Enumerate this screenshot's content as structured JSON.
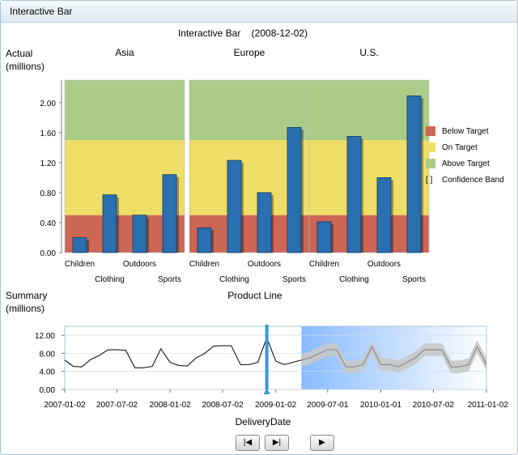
{
  "window": {
    "title": "Interactive Bar"
  },
  "main_chart": {
    "title": "Interactive Bar",
    "date": "(2008-12-02)",
    "ylabel_line1": "Actual",
    "ylabel_line2": "(millions)",
    "panels": [
      "Asia",
      "Europe",
      "U.S."
    ]
  },
  "legend": {
    "items": [
      {
        "label": "Below Target",
        "color": "#cc6655",
        "kind": "swatch"
      },
      {
        "label": "On Target",
        "color": "#eedd66",
        "kind": "swatch"
      },
      {
        "label": "Above Target",
        "color": "#aacc88",
        "kind": "swatch"
      },
      {
        "label": "Confidence Band",
        "color": "#000000",
        "kind": "bracket"
      }
    ],
    "bracket_glyph": "[ ]"
  },
  "summary": {
    "ylabel_line1": "Summary",
    "ylabel_line2": "(millions)",
    "title": "Product Line",
    "xlabel": "DeliveryDate"
  },
  "controls": {
    "first_glyph": "|◀",
    "last_glyph": "▶|",
    "play_glyph": "▶"
  },
  "chart_data": [
    {
      "type": "bar",
      "panels": [
        "Asia",
        "Europe",
        "U.S."
      ],
      "categories": [
        "Children",
        "Clothing",
        "Outdoors",
        "Sports"
      ],
      "series": [
        {
          "name": "Asia",
          "values": [
            0.2,
            0.77,
            0.5,
            1.04
          ]
        },
        {
          "name": "Europe",
          "values": [
            0.33,
            1.23,
            0.8,
            1.67
          ]
        },
        {
          "name": "U.S.",
          "values": [
            0.41,
            1.55,
            1.0,
            2.09
          ]
        }
      ],
      "bands": [
        {
          "label": "Below Target",
          "from": 0,
          "to": 0.5,
          "color": "#cc6655"
        },
        {
          "label": "On Target",
          "from": 0.5,
          "to": 1.5,
          "color": "#eedd66"
        },
        {
          "label": "Above Target",
          "from": 1.5,
          "to": 2.3,
          "color": "#aacc88"
        }
      ],
      "yticks": [
        "0.00",
        "0.40",
        "0.80",
        "1.20",
        "1.60",
        "2.00"
      ],
      "ylim": [
        0,
        2.3
      ],
      "bar_color": "#2a6faf",
      "ylabel": "Actual (millions)"
    },
    {
      "type": "line",
      "title": "Product Line",
      "xlabel": "DeliveryDate",
      "ylabel": "Summary (millions)",
      "xlim": [
        "2007-01-02",
        "2011-01-02"
      ],
      "ylim": [
        0,
        14
      ],
      "yticks": [
        "0.00",
        "4.00",
        "8.00",
        "12.00"
      ],
      "xticks": [
        "2007-01-02",
        "2007-07-02",
        "2008-01-02",
        "2008-07-02",
        "2009-01-02",
        "2009-07-01",
        "2010-01-01",
        "2010-07-02",
        "2011-01-02"
      ],
      "actual": {
        "x": [
          "2007-01-02",
          "2007-02-01",
          "2007-03-02",
          "2007-04-01",
          "2007-05-01",
          "2007-06-01",
          "2007-07-02",
          "2007-08-01",
          "2007-09-02",
          "2007-10-01",
          "2007-11-01",
          "2007-12-01",
          "2008-01-02",
          "2008-02-01",
          "2008-03-02",
          "2008-04-01",
          "2008-05-01",
          "2008-06-01",
          "2008-07-02",
          "2008-08-01",
          "2008-09-02",
          "2008-10-01",
          "2008-11-01",
          "2008-12-02",
          "2009-01-02",
          "2009-02-01",
          "2009-03-02",
          "2009-04-01"
        ],
        "y": [
          6.5,
          5.1,
          5.0,
          6.6,
          7.5,
          8.8,
          8.8,
          8.7,
          4.8,
          4.8,
          5.1,
          9.0,
          6.0,
          5.3,
          5.2,
          7.0,
          8.0,
          9.6,
          9.7,
          9.7,
          5.5,
          5.5,
          6.0,
          11.5,
          6.3,
          5.5,
          6.0,
          6.5
        ]
      },
      "forecast": {
        "x": [
          "2009-04-01",
          "2009-05-01",
          "2009-06-01",
          "2009-07-01",
          "2009-08-01",
          "2009-09-02",
          "2009-10-01",
          "2009-11-01",
          "2009-12-01",
          "2010-01-01",
          "2010-02-01",
          "2010-03-02",
          "2010-04-01",
          "2010-05-01",
          "2010-06-01",
          "2010-07-02",
          "2010-08-01",
          "2010-09-02",
          "2010-10-01",
          "2010-11-01",
          "2010-12-01",
          "2011-01-02"
        ],
        "y": [
          6.5,
          7.0,
          8.0,
          8.8,
          8.8,
          5.0,
          5.0,
          5.5,
          9.5,
          5.5,
          5.5,
          5.0,
          6.0,
          7.0,
          8.8,
          8.8,
          8.8,
          5.0,
          5.0,
          5.5,
          9.5,
          5.5
        ],
        "band_halfwidth": 1.4
      },
      "current_date": "2008-12-02",
      "forecast_start": "2009-04-01",
      "line_color": "#000000",
      "forecast_line_color": "#808080",
      "band_color": "#c8c8c8",
      "marker_color": "#3399dd"
    }
  ]
}
